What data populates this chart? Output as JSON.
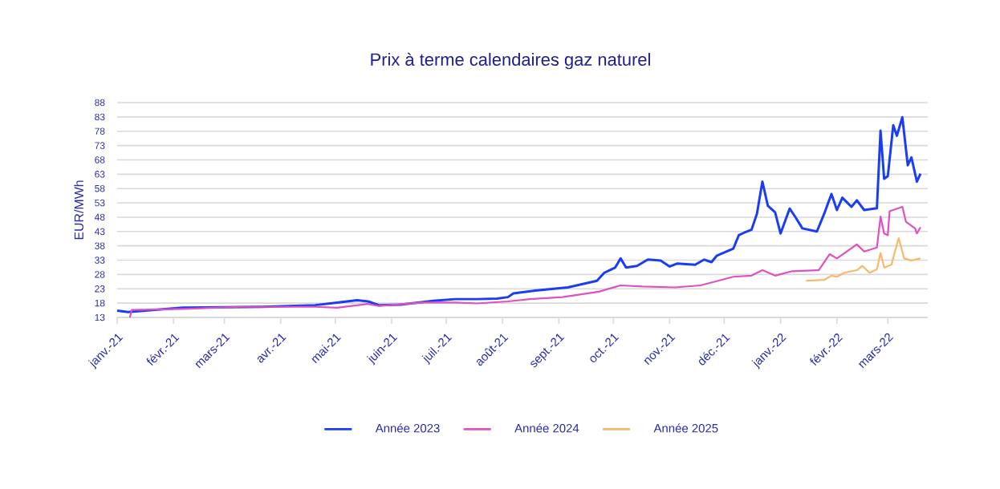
{
  "chart_data": {
    "type": "line",
    "title": "Prix à terme calendaires gaz naturel",
    "ylabel": "EUR/MWh",
    "xlim": [
      "2021-01-01",
      "2022-03-23"
    ],
    "xticks": [
      {
        "value": "2021-01-01",
        "label": "janv.-21"
      },
      {
        "value": "2021-02-01",
        "label": "févr.-21"
      },
      {
        "value": "2021-03-01",
        "label": "mars-21"
      },
      {
        "value": "2021-04-01",
        "label": "avr.-21"
      },
      {
        "value": "2021-05-01",
        "label": "mai-21"
      },
      {
        "value": "2021-06-01",
        "label": "juin-21"
      },
      {
        "value": "2021-07-01",
        "label": "juil.-21"
      },
      {
        "value": "2021-08-01",
        "label": "août-21"
      },
      {
        "value": "2021-09-01",
        "label": "sept.-21"
      },
      {
        "value": "2021-10-01",
        "label": "oct.-21"
      },
      {
        "value": "2021-11-01",
        "label": "nov.-21"
      },
      {
        "value": "2021-12-01",
        "label": "déc.-21"
      },
      {
        "value": "2022-01-01",
        "label": "janv.-22"
      },
      {
        "value": "2022-02-01",
        "label": "févr.-22"
      },
      {
        "value": "2022-03-01",
        "label": "mars-22"
      }
    ],
    "ylim": [
      13,
      88
    ],
    "yticks": [
      13,
      18,
      23,
      28,
      33,
      38,
      43,
      48,
      53,
      58,
      63,
      68,
      73,
      78,
      83,
      88
    ],
    "grid": "y",
    "legend": "bottom",
    "marker": "none",
    "line_style": "solid",
    "series": [
      {
        "name": "Année 2023",
        "color": "#1a3cf5",
        "x": [
          "2021-01-01",
          "2021-01-07",
          "2021-02-06",
          "2021-03-22",
          "2021-04-20",
          "2021-05-02",
          "2021-05-13",
          "2021-05-19",
          "2021-05-25",
          "2021-06-06",
          "2021-06-24",
          "2021-07-06",
          "2021-07-18",
          "2021-07-29",
          "2021-08-04",
          "2021-08-07",
          "2021-08-19",
          "2021-09-06",
          "2021-09-22",
          "2021-09-26",
          "2021-10-02",
          "2021-10-05",
          "2021-10-08",
          "2021-10-14",
          "2021-10-20",
          "2021-10-27",
          "2021-11-01",
          "2021-11-05",
          "2021-11-15",
          "2021-11-20",
          "2021-11-24",
          "2021-11-27",
          "2021-12-06",
          "2021-12-09",
          "2021-12-12",
          "2021-12-16",
          "2021-12-19",
          "2021-12-22",
          "2021-12-25",
          "2021-12-29",
          "2022-01-01",
          "2022-01-06",
          "2022-01-09",
          "2022-01-13",
          "2022-01-21",
          "2022-01-25",
          "2022-01-29",
          "2022-02-01",
          "2022-02-04",
          "2022-02-09",
          "2022-02-12",
          "2022-02-16",
          "2022-02-23",
          "2022-02-25",
          "2022-02-27",
          "2022-03-01",
          "2022-03-04",
          "2022-03-06",
          "2022-03-09",
          "2022-03-12",
          "2022-03-14",
          "2022-03-17",
          "2022-03-19"
        ],
        "values": [
          15.4,
          14.9,
          16.4,
          16.7,
          17.3,
          18.2,
          19,
          18.6,
          17.3,
          17.5,
          18.8,
          19.4,
          19.4,
          19.6,
          20.1,
          21.4,
          22.4,
          23.5,
          25.8,
          28.6,
          30.4,
          33.6,
          30.4,
          31,
          33.2,
          32.9,
          30.8,
          31.8,
          31.4,
          33.2,
          32.3,
          34.6,
          37,
          41.7,
          42.6,
          43.6,
          49.2,
          60.4,
          52,
          49.7,
          42.3,
          51,
          48.2,
          44.1,
          43,
          49.2,
          56.1,
          50.5,
          54.8,
          51.6,
          53.9,
          50.5,
          51.1,
          78.2,
          61.4,
          62.3,
          80.1,
          76.4,
          82.9,
          66.1,
          68.9,
          60.4,
          63.2
        ]
      },
      {
        "name": "Année 2024",
        "color": "#e050c0",
        "x": [
          "2021-01-08",
          "2021-01-09",
          "2021-02-06",
          "2021-03-10",
          "2021-04-20",
          "2021-05-02",
          "2021-05-19",
          "2021-05-25",
          "2021-06-18",
          "2021-07-06",
          "2021-07-18",
          "2021-08-04",
          "2021-08-16",
          "2021-09-03",
          "2021-09-23",
          "2021-10-05",
          "2021-10-17",
          "2021-11-04",
          "2021-11-18",
          "2021-12-06",
          "2021-12-16",
          "2021-12-22",
          "2021-12-29",
          "2022-01-07",
          "2022-01-22",
          "2022-01-28",
          "2022-02-01",
          "2022-02-12",
          "2022-02-16",
          "2022-02-23",
          "2022-02-25",
          "2022-02-27",
          "2022-03-01",
          "2022-03-02",
          "2022-03-09",
          "2022-03-11",
          "2022-03-16",
          "2022-03-17",
          "2022-03-19"
        ],
        "values": [
          13,
          15.6,
          16,
          16.7,
          16.7,
          16.4,
          17.7,
          17,
          18.2,
          18.2,
          17.9,
          18.6,
          19.4,
          20.1,
          22,
          24.2,
          23.8,
          23.5,
          24.2,
          27.2,
          27.6,
          29.5,
          27.6,
          29.1,
          29.5,
          35.1,
          33.6,
          38.5,
          36,
          37.4,
          48.2,
          42.3,
          41.7,
          50.1,
          51.6,
          46.4,
          44.1,
          42.3,
          44.5
        ]
      },
      {
        "name": "Année 2025",
        "color": "#f7b86a",
        "x": [
          "2022-01-15",
          "2022-01-25",
          "2022-01-29",
          "2022-02-01",
          "2022-02-05",
          "2022-02-12",
          "2022-02-15",
          "2022-02-19",
          "2022-02-23",
          "2022-02-25",
          "2022-02-27",
          "2022-03-03",
          "2022-03-06",
          "2022-03-07",
          "2022-03-10",
          "2022-03-14",
          "2022-03-19"
        ],
        "values": [
          25.8,
          26.1,
          27.6,
          27.2,
          28.6,
          29.5,
          31,
          28.6,
          29.8,
          35.5,
          30.4,
          31.4,
          38.5,
          40.7,
          33.6,
          32.9,
          33.6
        ]
      }
    ]
  }
}
